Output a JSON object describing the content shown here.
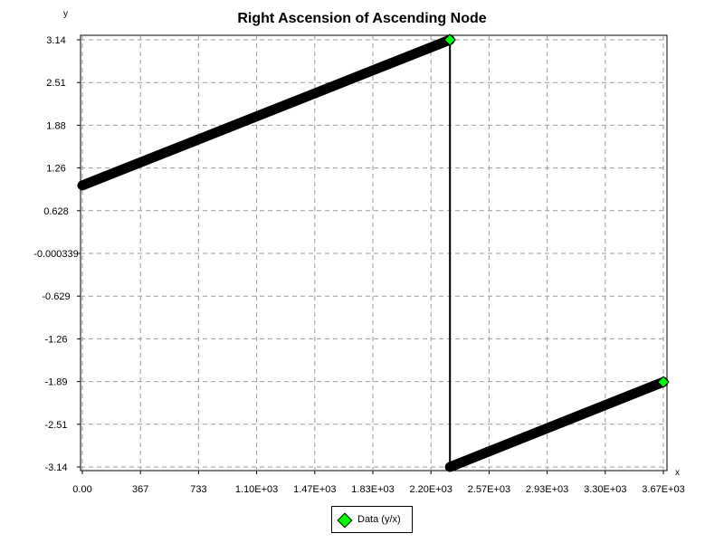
{
  "chart_data": {
    "type": "line",
    "title": "Right Ascension of Ascending Node",
    "xlabel": "x",
    "ylabel": "y",
    "x_ticks": [
      "0.00",
      "367",
      "733",
      "1.10E+03",
      "1.47E+03",
      "1.83E+03",
      "2.20E+03",
      "2.57E+03",
      "2.93E+03",
      "3.30E+03",
      "3.67E+03"
    ],
    "y_ticks": [
      "3.14",
      "2.51",
      "1.88",
      "1.26",
      "0.628",
      "-0.000339",
      "-0.629",
      "-1.26",
      "-1.89",
      "-2.51",
      "-3.14"
    ],
    "xlim": [
      0,
      3667
    ],
    "ylim": [
      -3.14,
      3.14
    ],
    "grid": true,
    "legend_position": "bottom",
    "series": [
      {
        "name": "Data (y/x)",
        "color": "#000000",
        "marker_color": "#00ff00",
        "x": [
          0,
          2320,
          2320,
          3667
        ],
        "y": [
          1.0,
          3.14,
          -3.14,
          -1.89
        ]
      }
    ]
  }
}
